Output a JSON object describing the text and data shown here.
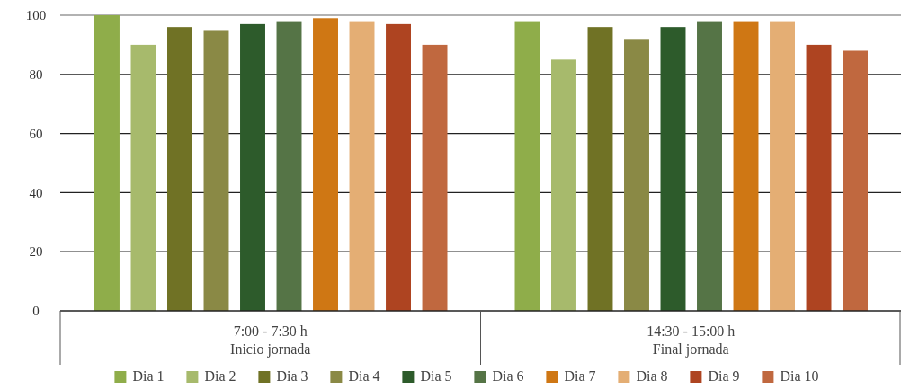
{
  "chart_data": {
    "type": "bar",
    "categories": [
      "7:00 - 7:30 h\nInicio jornada",
      "14:30 - 15:00 h\nFinal jornada"
    ],
    "series": [
      {
        "name": "Dia 1",
        "color": "#8fad4a",
        "values": [
          100,
          98
        ]
      },
      {
        "name": "Dia 2",
        "color": "#a7ba6c",
        "values": [
          90,
          85
        ]
      },
      {
        "name": "Dia 3",
        "color": "#707225",
        "values": [
          96,
          96
        ]
      },
      {
        "name": "Dia 4",
        "color": "#8a8945",
        "values": [
          95,
          92
        ]
      },
      {
        "name": "Dia 5",
        "color": "#2d5b2b",
        "values": [
          97,
          96
        ]
      },
      {
        "name": "Dia 6",
        "color": "#557446",
        "values": [
          98,
          98
        ]
      },
      {
        "name": "Dia 7",
        "color": "#cf7714",
        "values": [
          99,
          98
        ]
      },
      {
        "name": "Dia 8",
        "color": "#e4ae74",
        "values": [
          98,
          98
        ]
      },
      {
        "name": "Dia 9",
        "color": "#ae4421",
        "values": [
          97,
          90
        ]
      },
      {
        "name": "Dia 10",
        "color": "#c0683f",
        "values": [
          90,
          88
        ]
      }
    ],
    "ylim": [
      0,
      100
    ],
    "yticks": [
      0,
      20,
      40,
      60,
      80,
      100
    ],
    "grid": "y",
    "legend": "bottom"
  }
}
